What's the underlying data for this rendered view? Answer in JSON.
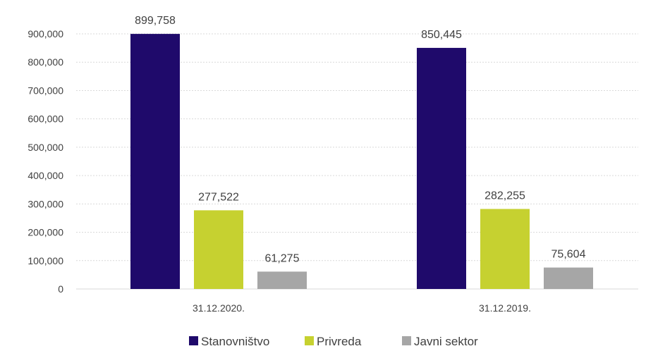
{
  "chart_data": {
    "type": "bar",
    "title": "",
    "xlabel": "",
    "ylabel": "",
    "categories": [
      "31.12.2020.",
      "31.12.2019."
    ],
    "series": [
      {
        "name": "Stanovništvo",
        "color": "#1f0a6b",
        "values": [
          899758,
          850445
        ],
        "labels": [
          "899,758",
          "850,445"
        ]
      },
      {
        "name": "Privreda",
        "color": "#c6d130",
        "values": [
          277522,
          282255
        ],
        "labels": [
          "277,522",
          "282,255"
        ]
      },
      {
        "name": "Javni sektor",
        "color": "#a6a6a6",
        "values": [
          61275,
          75604
        ],
        "labels": [
          "61,275",
          "75,604"
        ]
      }
    ],
    "ylim": [
      0,
      900000
    ],
    "yticks": [
      0,
      100000,
      200000,
      300000,
      400000,
      500000,
      600000,
      700000,
      800000,
      900000
    ],
    "ytick_labels": [
      "0",
      "100,000",
      "200,000",
      "300,000",
      "400,000",
      "500,000",
      "600,000",
      "700,000",
      "800,000",
      "900,000"
    ],
    "grid": true,
    "legend_position": "bottom"
  }
}
